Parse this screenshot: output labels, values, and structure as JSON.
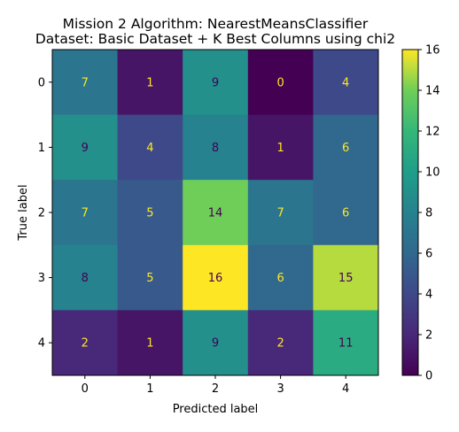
{
  "chart_data": {
    "type": "heatmap",
    "title_line1": "Mission 2 Algorithm: NearestMeansClassifier",
    "title_line2": "Dataset: Basic Dataset + K Best Columns using chi2",
    "xlabel": "Predicted label",
    "ylabel": "True label",
    "x_categories": [
      "0",
      "1",
      "2",
      "3",
      "4"
    ],
    "y_categories": [
      "0",
      "1",
      "2",
      "3",
      "4"
    ],
    "values": [
      [
        7,
        1,
        9,
        0,
        4
      ],
      [
        9,
        4,
        8,
        1,
        6
      ],
      [
        7,
        5,
        14,
        7,
        6
      ],
      [
        8,
        5,
        16,
        6,
        15
      ],
      [
        2,
        1,
        9,
        2,
        11
      ]
    ],
    "colormap": "viridis",
    "vmin": 0,
    "vmax": 16,
    "colorbar_ticks": [
      "0",
      "2",
      "4",
      "6",
      "8",
      "10",
      "12",
      "14",
      "16"
    ],
    "text_color_light": "#fde725",
    "text_color_dark": "#440154"
  }
}
